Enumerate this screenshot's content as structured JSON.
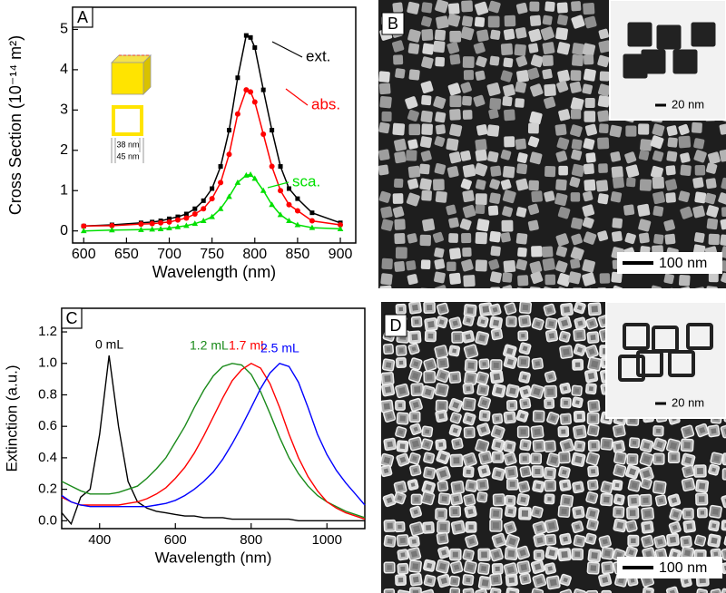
{
  "chart_data": [
    {
      "type": "line",
      "panel_label": "A",
      "x_label": "Wavelength (nm)",
      "y_label": "Cross Section (10⁻¹⁴ m²)",
      "x": [
        600,
        633,
        667,
        680,
        690,
        700,
        710,
        720,
        730,
        740,
        750,
        760,
        770,
        780,
        790,
        795,
        800,
        810,
        820,
        830,
        840,
        850,
        867,
        900
      ],
      "series": [
        {
          "name": "ext.",
          "color": "#000000",
          "marker": "square",
          "values": [
            0.12,
            0.15,
            0.2,
            0.22,
            0.25,
            0.3,
            0.35,
            0.42,
            0.55,
            0.75,
            1.05,
            1.6,
            2.5,
            3.8,
            4.85,
            4.8,
            4.55,
            3.5,
            2.5,
            1.6,
            1.05,
            0.8,
            0.45,
            0.2
          ]
        },
        {
          "name": "abs.",
          "color": "#ff0000",
          "marker": "circle",
          "values": [
            0.12,
            0.13,
            0.17,
            0.18,
            0.2,
            0.22,
            0.27,
            0.32,
            0.42,
            0.55,
            0.8,
            1.2,
            1.9,
            2.9,
            3.5,
            3.45,
            3.2,
            2.4,
            1.6,
            1.0,
            0.65,
            0.5,
            0.25,
            0.15
          ]
        },
        {
          "name": "sca.",
          "color": "#00e000",
          "marker": "triangle",
          "values": [
            0.0,
            0.02,
            0.03,
            0.04,
            0.05,
            0.07,
            0.1,
            0.13,
            0.18,
            0.25,
            0.35,
            0.55,
            0.85,
            1.2,
            1.38,
            1.4,
            1.3,
            1.0,
            0.65,
            0.4,
            0.25,
            0.15,
            0.08,
            0.05
          ]
        }
      ],
      "xlim": [
        587,
        918
      ],
      "xticks": [
        600,
        650,
        700,
        750,
        800,
        850,
        900
      ],
      "ylim": [
        -0.3,
        5.55
      ],
      "yticks": [
        0,
        1,
        2,
        3,
        4,
        5
      ],
      "inset_labels": [
        "38 nm",
        "45 nm"
      ]
    },
    {
      "type": "line",
      "panel_label": "C",
      "x_label": "Wavelength (nm)",
      "y_label": "Extinction (a.u.)",
      "x": [
        300,
        325,
        350,
        375,
        400,
        425,
        450,
        475,
        500,
        525,
        550,
        575,
        600,
        625,
        650,
        675,
        700,
        725,
        750,
        775,
        800,
        825,
        850,
        875,
        900,
        925,
        950,
        975,
        1000,
        1025,
        1050,
        1075,
        1100
      ],
      "series": [
        {
          "name": "0 mL",
          "color": "#000000",
          "values": [
            0.05,
            -0.02,
            0.15,
            0.2,
            0.55,
            1.05,
            0.6,
            0.25,
            0.12,
            0.08,
            0.06,
            0.05,
            0.04,
            0.03,
            0.03,
            0.02,
            0.02,
            0.02,
            0.01,
            0.01,
            0.01,
            0.01,
            0.01,
            0.01,
            0.01,
            0.0,
            0.0,
            0.0,
            0.0,
            0.0,
            0.0,
            0.0,
            0.0
          ]
        },
        {
          "name": "1.2 mL",
          "color": "#1a8a1a",
          "values": [
            0.25,
            0.22,
            0.19,
            0.17,
            0.17,
            0.17,
            0.18,
            0.2,
            0.22,
            0.27,
            0.33,
            0.4,
            0.5,
            0.6,
            0.72,
            0.83,
            0.92,
            0.98,
            1.0,
            0.99,
            0.93,
            0.82,
            0.68,
            0.53,
            0.4,
            0.3,
            0.22,
            0.16,
            0.12,
            0.09,
            0.06,
            0.04,
            0.02
          ]
        },
        {
          "name": "1.7 mL",
          "color": "#ff0000",
          "values": [
            0.15,
            0.12,
            0.1,
            0.1,
            0.1,
            0.1,
            0.1,
            0.11,
            0.12,
            0.14,
            0.17,
            0.21,
            0.27,
            0.34,
            0.43,
            0.54,
            0.66,
            0.78,
            0.89,
            0.96,
            1.0,
            0.97,
            0.87,
            0.72,
            0.55,
            0.4,
            0.28,
            0.19,
            0.12,
            0.08,
            0.05,
            0.03,
            0.01
          ]
        },
        {
          "name": "2.5 mL",
          "color": "#0000ff",
          "values": [
            0.16,
            0.12,
            0.1,
            0.09,
            0.09,
            0.09,
            0.09,
            0.09,
            0.09,
            0.09,
            0.1,
            0.11,
            0.13,
            0.16,
            0.2,
            0.25,
            0.31,
            0.39,
            0.49,
            0.6,
            0.72,
            0.84,
            0.94,
            1.0,
            0.98,
            0.88,
            0.72,
            0.55,
            0.42,
            0.32,
            0.24,
            0.17,
            0.1
          ]
        }
      ],
      "xlim": [
        300,
        1100
      ],
      "xticks": [
        400,
        600,
        800,
        1000
      ],
      "ylim": [
        -0.05,
        1.35
      ],
      "yticks": [
        {
          "value": 0,
          "label": "0.0"
        },
        0.2,
        0.4,
        0.6,
        0.8,
        {
          "value": 1,
          "label": "1.0"
        },
        1.2
      ]
    }
  ],
  "images": [
    {
      "panel_label": "B",
      "scale_bar": "100 nm",
      "inset_scale_bar": "20 nm"
    },
    {
      "panel_label": "D",
      "scale_bar": "100 nm",
      "inset_scale_bar": "20 nm"
    }
  ]
}
